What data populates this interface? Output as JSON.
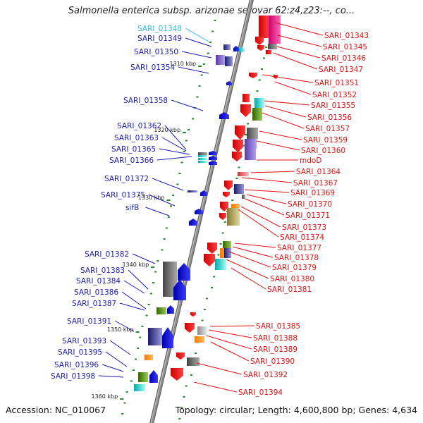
{
  "title": "Salmonella enterica subsp. arizonae serovar 62:z4,z23:--, co...",
  "footer": {
    "accession": "Accession: NC_010067",
    "summary": "Topology: circular; Length: 4,600,800 bp; Genes: 4,634"
  },
  "colors": {
    "left_label": "#1a1ab4",
    "left_highlight": "#33bbdd",
    "right_label": "#e01010",
    "scale_tick": "#22882a",
    "backbone": "#8c8c8c"
  },
  "scale_marks": [
    "1310 kbp",
    "1320 kbp",
    "1330 kbp",
    "1340 kbp",
    "1350 kbp",
    "1360 kbp"
  ],
  "left_labels": [
    "SARI_01348",
    "SARI_01349",
    "SARI_01350",
    "SARI_01354",
    "SARI_01358",
    "SARI_01362",
    "SARI_01363",
    "SARI_01365",
    "SARI_01366",
    "SARI_01372",
    "SARI_01375",
    "sifB",
    "SARI_01382",
    "SARI_01383",
    "SARI_01384",
    "SARI_01386",
    "SARI_01387",
    "SARI_01391",
    "SARI_01393",
    "SARI_01395",
    "SARI_01396",
    "SARI_01398"
  ],
  "right_labels": [
    "SARI_01343",
    "SARI_01345",
    "SARI_01346",
    "SARI_01347",
    "SARI_01351",
    "SARI_01352",
    "SARI_01355",
    "SARI_01356",
    "SARI_01357",
    "SARI_01359",
    "SARI_01360",
    "mdoD",
    "SARI_01364",
    "SARI_01367",
    "SARI_01369",
    "SARI_01370",
    "SARI_01371",
    "SARI_01373",
    "SARI_01374",
    "SARI_01377",
    "SARI_01378",
    "SARI_01379",
    "SARI_01380",
    "SARI_01381",
    "SARI_01385",
    "SARI_01388",
    "SARI_01389",
    "SARI_01390",
    "SARI_01392",
    "SARI_01394"
  ]
}
